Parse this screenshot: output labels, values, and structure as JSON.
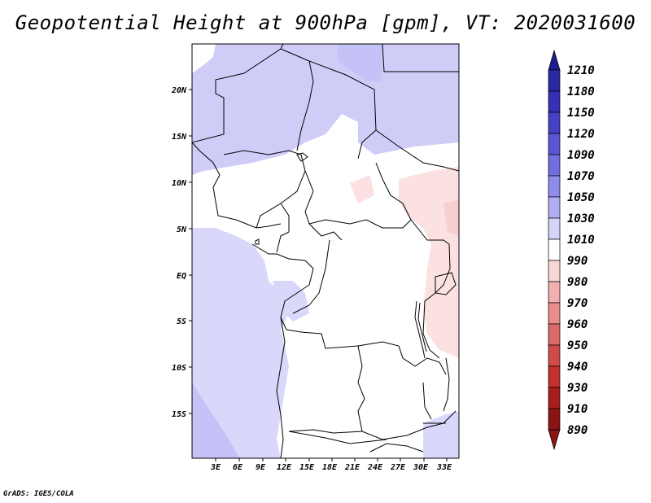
{
  "title": "Geopotential Height at 900hPa [gpm], VT: 2020031600",
  "credit": "GrADS: IGES/COLA",
  "map": {
    "lon_range": [
      0,
      34
    ],
    "lat_range": [
      -20,
      25
    ],
    "lon_ticks": [
      "3E",
      "6E",
      "9E",
      "12E",
      "15E",
      "18E",
      "21E",
      "24E",
      "27E",
      "30E",
      "33E"
    ],
    "lat_ticks": [
      "20N",
      "15N",
      "10N",
      "5N",
      "EQ",
      "5S",
      "10S",
      "15S"
    ]
  },
  "colorbar": {
    "levels": [
      "1210",
      "1180",
      "1150",
      "1120",
      "1090",
      "1070",
      "1050",
      "1030",
      "1010",
      "990",
      "980",
      "970",
      "960",
      "950",
      "940",
      "930",
      "910",
      "890"
    ],
    "colors": [
      "#1e1c8c",
      "#2a28a0",
      "#3530b4",
      "#4540c4",
      "#5a55d2",
      "#726ee0",
      "#8f8bea",
      "#b0adf2",
      "#d4d3f8",
      "#ffffff",
      "#f9d6d6",
      "#f2b0b0",
      "#e88c8c",
      "#dc6a6a",
      "#d04a4a",
      "#c23030",
      "#a81e1e",
      "#8a1414"
    ]
  },
  "field_colors": {
    "land": "#ffffff",
    "ocean_low": "#d9d8fb",
    "ocean_mid": "#c4c2f6",
    "high_north": "#cfcdf8",
    "low_east": "#fbe1e1",
    "low_east_strong": "#f7cfcf",
    "border": "#000000"
  }
}
